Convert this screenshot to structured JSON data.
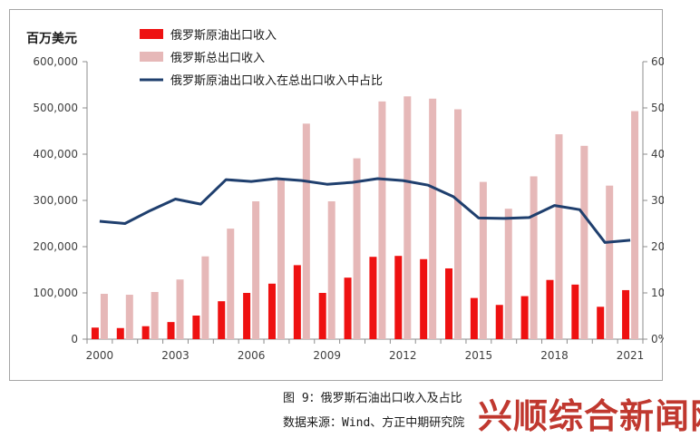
{
  "chart_data": {
    "type": "bar",
    "unit_label": "百万美元",
    "years": [
      2000,
      2001,
      2002,
      2003,
      2004,
      2005,
      2006,
      2007,
      2008,
      2009,
      2010,
      2011,
      2012,
      2013,
      2014,
      2015,
      2016,
      2017,
      2018,
      2019,
      2020,
      2021
    ],
    "x_tick_labels": [
      "2000",
      "2003",
      "2006",
      "2009",
      "2012",
      "2015",
      "2018",
      "2021"
    ],
    "y_left_ticks": [
      "0",
      "100,000",
      "200,000",
      "300,000",
      "400,000",
      "500,000",
      "600,000"
    ],
    "y_right_ticks": [
      "0%",
      "10%",
      "20%",
      "30%",
      "40%",
      "50%",
      "60%"
    ],
    "y_left_range": [
      0,
      600000
    ],
    "y_right_range": [
      0,
      60
    ],
    "series": [
      {
        "name": "俄罗斯原油出口收入",
        "kind": "bar",
        "axis": "left",
        "color": "#ee1111",
        "values": [
          25000,
          24000,
          28000,
          37000,
          51000,
          82000,
          100000,
          120000,
          160000,
          100000,
          133000,
          178000,
          180000,
          173000,
          153000,
          89000,
          74000,
          93000,
          128000,
          118000,
          70000,
          106000
        ]
      },
      {
        "name": "俄罗斯总出口收入",
        "kind": "bar",
        "axis": "left",
        "color": "#e6b8b8",
        "values": [
          98000,
          96000,
          102000,
          129000,
          179000,
          239000,
          298000,
          345000,
          466000,
          298000,
          391000,
          514000,
          525000,
          520000,
          497000,
          340000,
          282000,
          352000,
          443000,
          418000,
          332000,
          493000
        ]
      },
      {
        "name": "俄罗斯原油出口收入在总出口收入中占比",
        "kind": "line",
        "axis": "right",
        "color": "#1f3f6e",
        "values": [
          25.5,
          25.0,
          27.8,
          30.3,
          29.2,
          34.5,
          34.1,
          34.7,
          34.3,
          33.5,
          33.9,
          34.7,
          34.3,
          33.3,
          30.8,
          26.2,
          26.1,
          26.3,
          28.9,
          28.0,
          20.9,
          21.4
        ]
      }
    ],
    "grid": false,
    "legend_position": "top-left"
  },
  "caption": {
    "title": "图 9：俄罗斯石油出口收入及占比",
    "source": "数据来源：Wind、方正中期研究院"
  },
  "watermark": "兴顺综合新闻网"
}
